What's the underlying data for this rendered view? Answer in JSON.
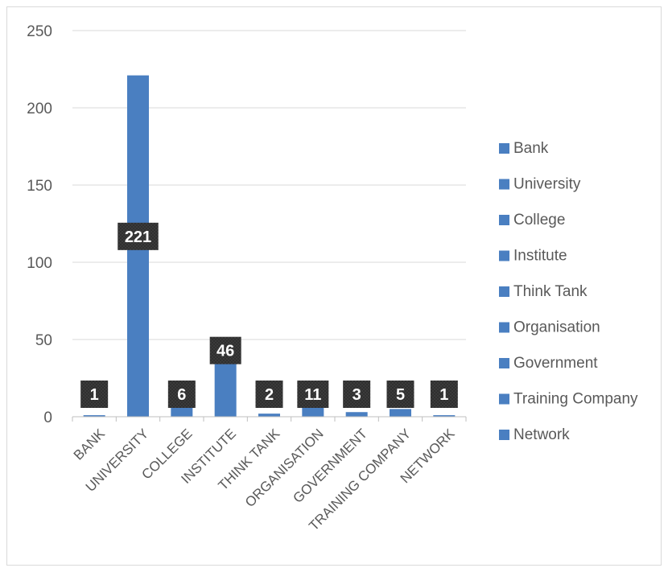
{
  "chart_data": {
    "type": "bar",
    "categories": [
      "BANK",
      "UNIVERSITY",
      "COLLEGE",
      "INSTITUTE",
      "THINK TANK",
      "ORGANISATION",
      "GOVERNMENT",
      "TRAINING COMPANY",
      "NETWORK"
    ],
    "values": [
      1,
      221,
      6,
      46,
      2,
      11,
      3,
      5,
      1
    ],
    "legend_entries": [
      "Bank",
      "University",
      "College",
      "Institute",
      "Think Tank",
      "Organisation",
      "Government",
      "Training Company",
      "Network"
    ],
    "ylim": [
      0,
      250
    ],
    "yticks": [
      0,
      50,
      100,
      150,
      200,
      250
    ],
    "grid": true,
    "legend_position": "right",
    "bar_color": "#4a7fc1",
    "label_box_color": "#3a3a3a"
  }
}
